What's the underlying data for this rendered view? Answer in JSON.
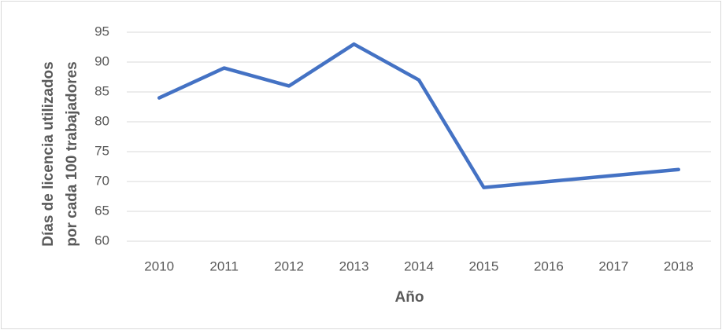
{
  "chart_data": {
    "type": "line",
    "y_label": [
      "Días de licencia utilizados",
      "por cada 100 trabajadores"
    ],
    "x_label": "Año",
    "categories": [
      "2010",
      "2011",
      "2012",
      "2013",
      "2014",
      "2015",
      "2016",
      "2017",
      "2018"
    ],
    "values": [
      84,
      89,
      86,
      93,
      87,
      69,
      70,
      71,
      72
    ],
    "color": "#4472c4",
    "ylim": [
      60,
      95
    ],
    "yticks": [
      60,
      65,
      70,
      75,
      80,
      85,
      90,
      95
    ],
    "grid": true
  }
}
